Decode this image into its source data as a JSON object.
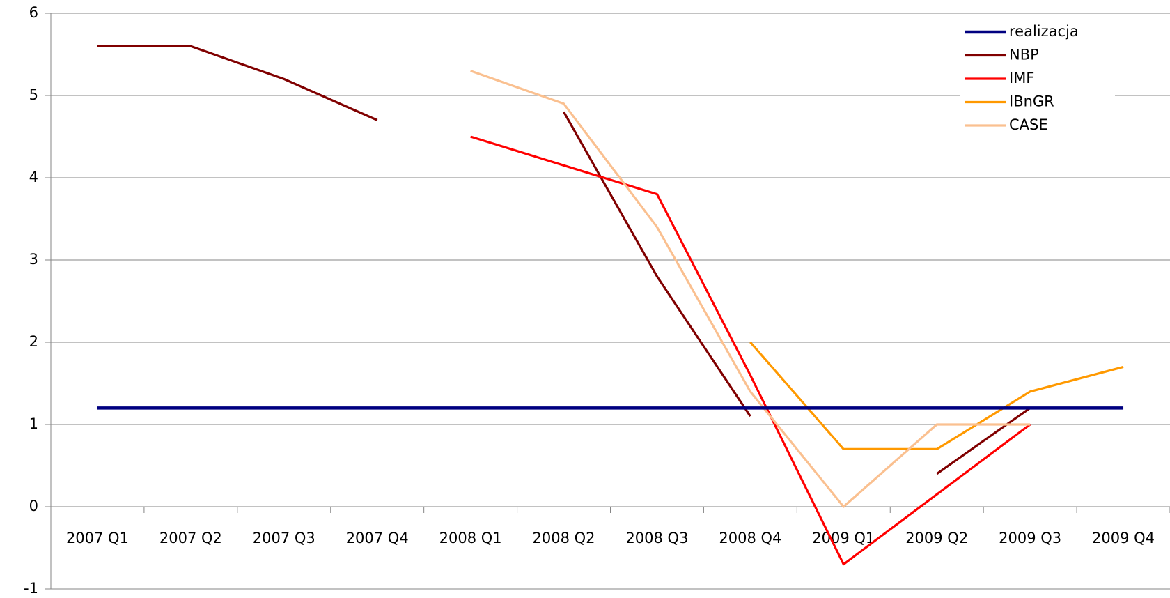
{
  "chart_data": {
    "type": "line",
    "categories": [
      "2007 Q1",
      "2007 Q2",
      "2007 Q3",
      "2007 Q4",
      "2008 Q1",
      "2008 Q2",
      "2008 Q3",
      "2008 Q4",
      "2009 Q1",
      "2009 Q2",
      "2009 Q3",
      "2009 Q4"
    ],
    "series": [
      {
        "name": "realizacja",
        "color": "#000080",
        "values": [
          1.2,
          1.2,
          1.2,
          1.2,
          1.2,
          1.2,
          1.2,
          1.2,
          1.2,
          1.2,
          1.2,
          1.2
        ]
      },
      {
        "name": "NBP",
        "color": "#800000",
        "values": [
          5.6,
          5.6,
          5.2,
          4.7,
          null,
          4.8,
          2.8,
          1.1,
          null,
          0.4,
          1.2,
          null
        ]
      },
      {
        "name": "IMF",
        "color": "#ff0000",
        "values": [
          null,
          null,
          null,
          null,
          4.5,
          4.15,
          3.8,
          1.6,
          -0.7,
          0.15,
          1.0,
          null
        ]
      },
      {
        "name": "IBnGR",
        "color": "#ff9900",
        "values": [
          null,
          null,
          null,
          null,
          null,
          null,
          null,
          2.0,
          0.7,
          0.7,
          1.4,
          1.7
        ]
      },
      {
        "name": "CASE",
        "color": "#fac090",
        "values": [
          null,
          null,
          null,
          null,
          5.3,
          4.9,
          3.4,
          1.4,
          0.0,
          1.0,
          1.0,
          null
        ]
      }
    ],
    "ylim": [
      -1,
      6
    ],
    "yticks": [
      -1,
      0,
      1,
      2,
      3,
      4,
      5,
      6
    ],
    "grid": true,
    "legend": "top-right"
  }
}
